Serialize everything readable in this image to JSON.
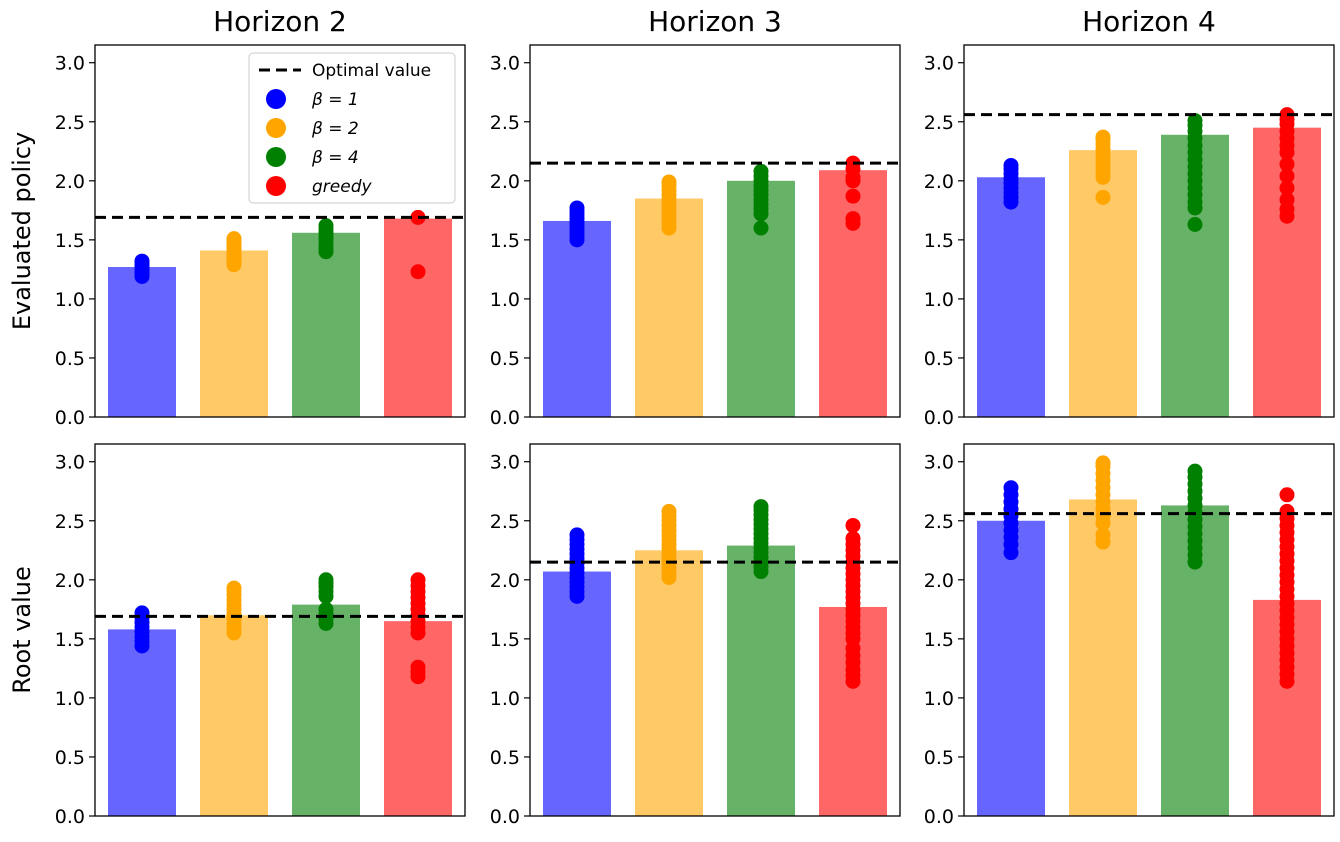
{
  "chart_data": {
    "type": "bar",
    "column_titles": [
      "Horizon 2",
      "Horizon 3",
      "Horizon 4"
    ],
    "row_labels": [
      "Evaluated policy",
      "Root value"
    ],
    "categories": [
      "β = 1",
      "β = 2",
      "β = 4",
      "greedy"
    ],
    "ylim": [
      0,
      3.15
    ],
    "yticks": [
      "0.0",
      "0.5",
      "1.0",
      "1.5",
      "2.0",
      "2.5",
      "3.0"
    ],
    "grid": false,
    "legend": {
      "placement": "top-right of first panel",
      "entries": [
        {
          "label": "Optimal value",
          "kind": "dashed-line",
          "color": "#000000"
        },
        {
          "label": "β = 1",
          "kind": "marker",
          "color": "#0000ff"
        },
        {
          "label": "β = 2",
          "kind": "marker",
          "color": "#ffa500"
        },
        {
          "label": "β = 4",
          "kind": "marker",
          "color": "#008000"
        },
        {
          "label": "greedy",
          "kind": "marker",
          "color": "#ff0000"
        }
      ]
    },
    "colors": {
      "bars": [
        "#6666ff",
        "#ffc966",
        "#66b266",
        "#ff6666"
      ],
      "points": [
        "#0000ff",
        "#ffa500",
        "#008000",
        "#ff0000"
      ]
    },
    "panels": [
      {
        "row": 0,
        "col": 0,
        "optimal": 1.69,
        "bars": [
          1.27,
          1.41,
          1.56,
          1.68
        ],
        "points": [
          [
            1.19,
            1.21,
            1.23,
            1.25,
            1.27,
            1.29,
            1.31,
            1.32
          ],
          [
            1.29,
            1.31,
            1.33,
            1.35,
            1.37,
            1.39,
            1.41,
            1.43,
            1.45,
            1.47,
            1.49,
            1.51
          ],
          [
            1.4,
            1.43,
            1.46,
            1.5,
            1.53,
            1.56,
            1.59,
            1.62
          ],
          [
            1.23,
            1.69
          ]
        ]
      },
      {
        "row": 0,
        "col": 1,
        "optimal": 2.15,
        "bars": [
          1.66,
          1.85,
          2.0,
          2.09
        ],
        "points": [
          [
            1.5,
            1.53,
            1.56,
            1.59,
            1.62,
            1.65,
            1.68,
            1.71,
            1.74,
            1.77
          ],
          [
            1.6,
            1.64,
            1.68,
            1.72,
            1.76,
            1.8,
            1.84,
            1.88,
            1.92,
            1.96,
            1.99
          ],
          [
            1.6,
            1.72,
            1.76,
            1.8,
            1.84,
            1.88,
            1.92,
            1.96,
            2.0,
            2.04,
            2.08
          ],
          [
            1.64,
            1.68,
            1.87,
            2.0,
            2.03,
            2.1,
            2.15
          ]
        ]
      },
      {
        "row": 0,
        "col": 2,
        "optimal": 2.56,
        "bars": [
          2.03,
          2.26,
          2.39,
          2.45
        ],
        "points": [
          [
            1.82,
            1.86,
            1.9,
            1.94,
            1.98,
            2.02,
            2.06,
            2.1,
            2.13
          ],
          [
            1.86,
            2.03,
            2.07,
            2.11,
            2.15,
            2.19,
            2.23,
            2.27,
            2.31,
            2.35,
            2.37
          ],
          [
            1.63,
            1.77,
            1.82,
            1.88,
            1.94,
            2.0,
            2.06,
            2.12,
            2.18,
            2.24,
            2.3,
            2.36,
            2.42,
            2.47,
            2.51
          ],
          [
            1.7,
            1.76,
            1.84,
            1.94,
            2.04,
            2.14,
            2.24,
            2.3,
            2.36,
            2.42,
            2.48,
            2.52,
            2.56
          ]
        ]
      },
      {
        "row": 1,
        "col": 0,
        "optimal": 1.69,
        "bars": [
          1.58,
          1.7,
          1.79,
          1.65
        ],
        "points": [
          [
            1.44,
            1.48,
            1.52,
            1.56,
            1.6,
            1.64,
            1.68,
            1.72
          ],
          [
            1.55,
            1.59,
            1.63,
            1.67,
            1.71,
            1.75,
            1.79,
            1.83,
            1.87,
            1.91,
            1.93
          ],
          [
            1.63,
            1.67,
            1.71,
            1.75,
            1.86,
            1.9,
            1.94,
            1.97,
            2.0
          ],
          [
            1.18,
            1.22,
            1.26,
            1.55,
            1.6,
            1.65,
            1.7,
            1.75,
            1.8,
            1.85,
            1.9,
            1.95,
            2.0
          ]
        ]
      },
      {
        "row": 1,
        "col": 1,
        "optimal": 2.15,
        "bars": [
          2.07,
          2.25,
          2.29,
          1.77
        ],
        "points": [
          [
            1.86,
            1.9,
            1.94,
            1.98,
            2.02,
            2.06,
            2.1,
            2.14,
            2.18,
            2.22,
            2.26,
            2.3,
            2.34,
            2.38
          ],
          [
            2.02,
            2.06,
            2.1,
            2.14,
            2.18,
            2.22,
            2.26,
            2.3,
            2.34,
            2.38,
            2.42,
            2.46,
            2.5,
            2.54,
            2.58
          ],
          [
            2.07,
            2.11,
            2.15,
            2.19,
            2.23,
            2.27,
            2.31,
            2.35,
            2.39,
            2.43,
            2.47,
            2.51,
            2.55,
            2.59,
            2.62
          ],
          [
            1.14,
            1.19,
            1.24,
            1.3,
            1.36,
            1.42,
            1.5,
            1.55,
            1.6,
            1.65,
            1.7,
            1.75,
            1.8,
            1.85,
            1.9,
            1.95,
            2.0,
            2.05,
            2.1,
            2.15,
            2.2,
            2.25,
            2.3,
            2.35,
            2.46
          ]
        ]
      },
      {
        "row": 1,
        "col": 2,
        "optimal": 2.56,
        "bars": [
          2.5,
          2.68,
          2.63,
          1.83
        ],
        "points": [
          [
            2.23,
            2.3,
            2.36,
            2.42,
            2.48,
            2.54,
            2.6,
            2.66,
            2.72,
            2.78
          ],
          [
            2.32,
            2.38,
            2.48,
            2.54,
            2.6,
            2.66,
            2.72,
            2.78,
            2.84,
            2.9,
            2.96,
            2.99
          ],
          [
            2.15,
            2.21,
            2.27,
            2.33,
            2.39,
            2.45,
            2.51,
            2.57,
            2.63,
            2.69,
            2.75,
            2.81,
            2.87,
            2.92
          ],
          [
            1.14,
            1.2,
            1.26,
            1.32,
            1.38,
            1.44,
            1.5,
            1.56,
            1.62,
            1.68,
            1.74,
            1.8,
            1.86,
            1.92,
            1.98,
            2.04,
            2.1,
            2.16,
            2.22,
            2.28,
            2.34,
            2.4,
            2.46,
            2.52,
            2.58,
            2.72
          ]
        ]
      }
    ]
  }
}
